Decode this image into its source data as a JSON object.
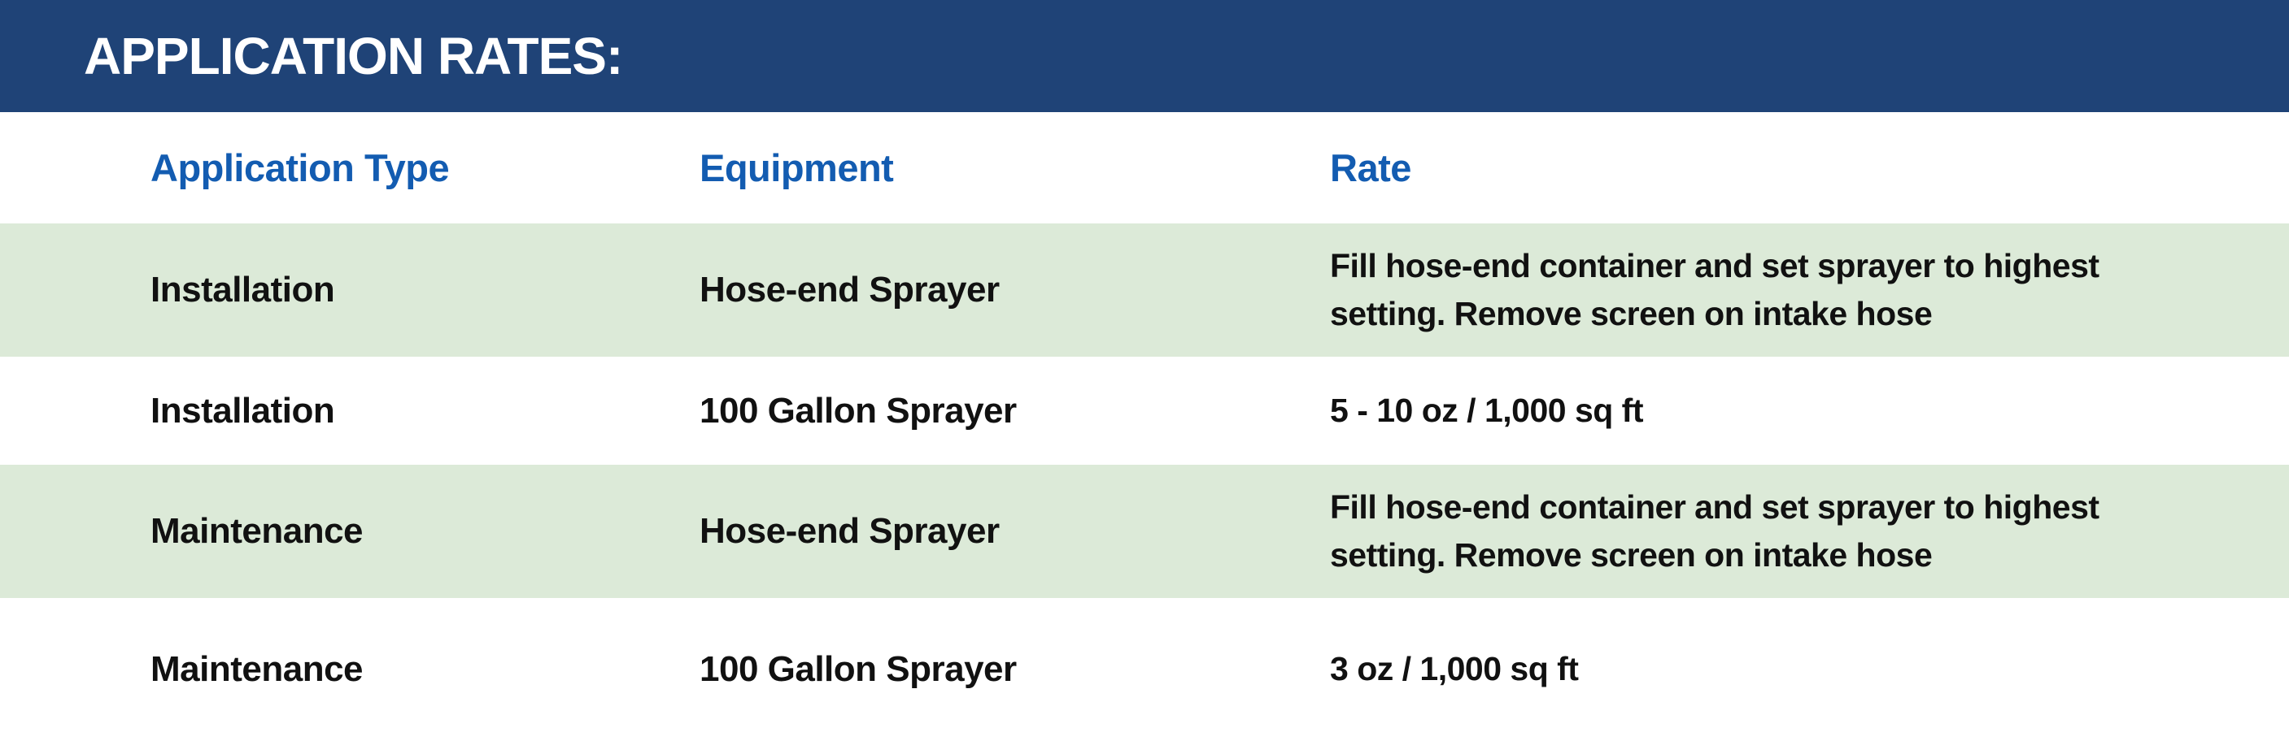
{
  "title_bar": {
    "title": "APPLICATION RATES:"
  },
  "colors": {
    "title_bar_bg": "#1f4377",
    "title_text": "#ffffff",
    "column_header_text": "#135cb1",
    "row_alt_bg": "#dcead8",
    "row_bg": "#ffffff",
    "body_text": "#111111"
  },
  "table": {
    "columns": [
      {
        "label": "Application Type"
      },
      {
        "label": "Equipment"
      },
      {
        "label": "Rate"
      }
    ],
    "rows": [
      {
        "application_type": "Installation",
        "equipment": "Hose-end Sprayer",
        "rate": "Fill hose-end container and set sprayer to highest setting. Remove screen on intake hose"
      },
      {
        "application_type": "Installation",
        "equipment": "100 Gallon Sprayer",
        "rate": "5 - 10 oz / 1,000 sq ft"
      },
      {
        "application_type": "Maintenance",
        "equipment": "Hose-end Sprayer",
        "rate": "Fill hose-end container and set sprayer to highest setting. Remove screen on intake hose"
      },
      {
        "application_type": "Maintenance",
        "equipment": "100 Gallon Sprayer",
        "rate": "3 oz / 1,000 sq ft"
      }
    ]
  }
}
